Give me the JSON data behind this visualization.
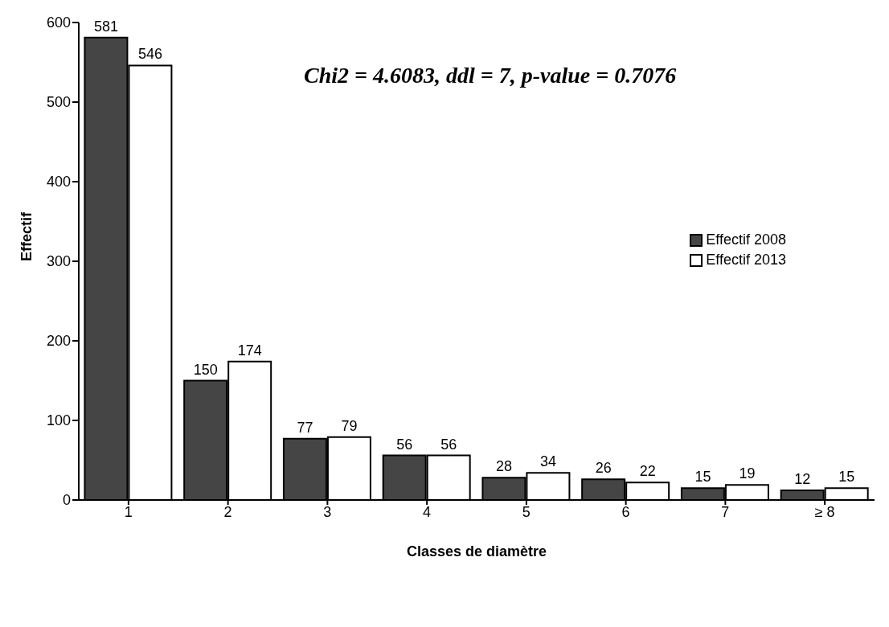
{
  "chart_data": {
    "type": "bar",
    "xlabel": "Classes de diamètre",
    "ylabel": "Effectif",
    "categories": [
      "1",
      "2",
      "3",
      "4",
      "5",
      "6",
      "7",
      "≥ 8"
    ],
    "series": [
      {
        "name": "Effectif 2008",
        "color": "#454545",
        "values": [
          581,
          150,
          77,
          56,
          28,
          26,
          15,
          12
        ]
      },
      {
        "name": "Effectif 2013",
        "color": "#ffffff",
        "values": [
          546,
          174,
          79,
          56,
          34,
          22,
          19,
          15
        ]
      }
    ],
    "ylim": [
      0,
      600
    ],
    "yticks": [
      0,
      100,
      200,
      300,
      400,
      500,
      600
    ],
    "grid": false,
    "legend": "right",
    "data_labels": true,
    "annotations": [
      "Chi2 = 4.6083, ddl = 7, p-value = 0.7076"
    ]
  }
}
